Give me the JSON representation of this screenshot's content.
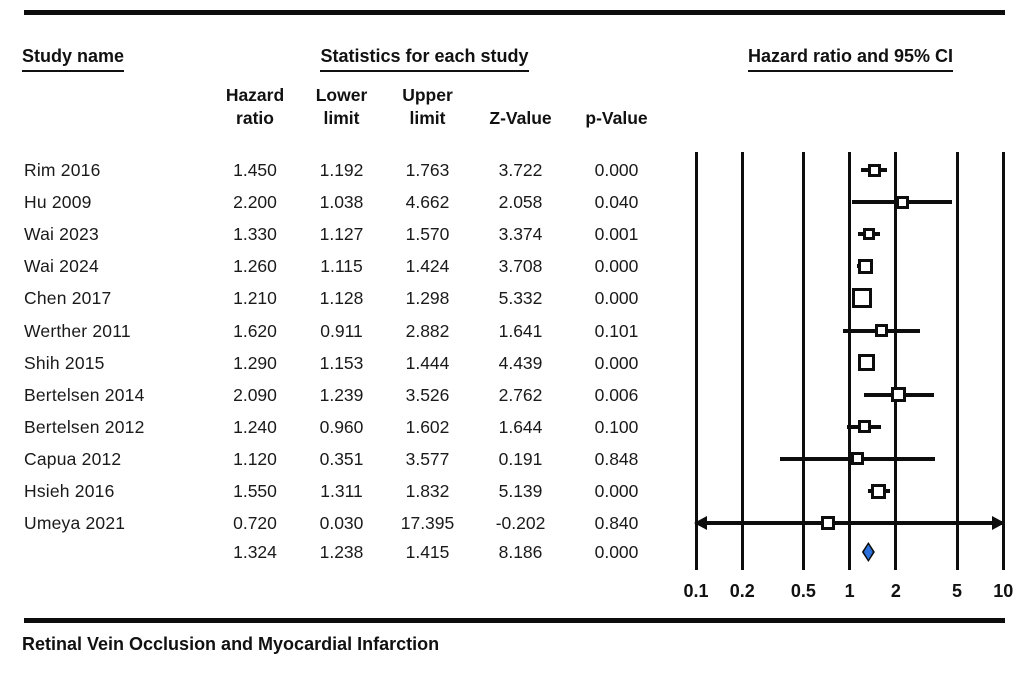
{
  "figure": {
    "headers": {
      "study": "Study name",
      "stats": "Statistics for each study",
      "plot": "Hazard ratio and 95% CI"
    },
    "stat_columns": [
      {
        "line1": "Hazard",
        "line2": "ratio"
      },
      {
        "line1": "Lower",
        "line2": "limit"
      },
      {
        "line1": "Upper",
        "line2": "limit"
      },
      {
        "line1": "Z-Value"
      },
      {
        "line1": "p-Value"
      }
    ],
    "caption": "Retinal Vein Occlusion and Myocardial Infarction"
  },
  "chart_data": {
    "type": "forest",
    "title": "Hazard ratio and 95% CI",
    "xscale": "log",
    "xlim": [
      0.1,
      10
    ],
    "xticks": [
      "0.1",
      "0.2",
      "0.5",
      "1",
      "2",
      "5",
      "10"
    ],
    "columns": [
      "Hazard ratio",
      "Lower limit",
      "Upper limit",
      "Z-Value",
      "p-Value"
    ],
    "studies": [
      {
        "name": "Rim 2016",
        "hazard_ratio": 1.45,
        "lower_limit": 1.192,
        "upper_limit": 1.763,
        "z_value": 3.722,
        "p_value": 0.0,
        "marker_size": 13
      },
      {
        "name": "Hu 2009",
        "hazard_ratio": 2.2,
        "lower_limit": 1.038,
        "upper_limit": 4.662,
        "z_value": 2.058,
        "p_value": 0.04,
        "marker_size": 13
      },
      {
        "name": "Wai 2023",
        "hazard_ratio": 1.33,
        "lower_limit": 1.127,
        "upper_limit": 1.57,
        "z_value": 3.374,
        "p_value": 0.001,
        "marker_size": 12
      },
      {
        "name": "Wai 2024",
        "hazard_ratio": 1.26,
        "lower_limit": 1.115,
        "upper_limit": 1.424,
        "z_value": 3.708,
        "p_value": 0.0,
        "marker_size": 15
      },
      {
        "name": "Chen 2017",
        "hazard_ratio": 1.21,
        "lower_limit": 1.128,
        "upper_limit": 1.298,
        "z_value": 5.332,
        "p_value": 0.0,
        "marker_size": 20
      },
      {
        "name": "Werther 2011",
        "hazard_ratio": 1.62,
        "lower_limit": 0.911,
        "upper_limit": 2.882,
        "z_value": 1.641,
        "p_value": 0.101,
        "marker_size": 13
      },
      {
        "name": "Shih 2015",
        "hazard_ratio": 1.29,
        "lower_limit": 1.153,
        "upper_limit": 1.444,
        "z_value": 4.439,
        "p_value": 0.0,
        "marker_size": 17
      },
      {
        "name": "Bertelsen 2014",
        "hazard_ratio": 2.09,
        "lower_limit": 1.239,
        "upper_limit": 3.526,
        "z_value": 2.762,
        "p_value": 0.006,
        "marker_size": 15
      },
      {
        "name": "Bertelsen 2012",
        "hazard_ratio": 1.24,
        "lower_limit": 0.96,
        "upper_limit": 1.602,
        "z_value": 1.644,
        "p_value": 0.1,
        "marker_size": 13
      },
      {
        "name": "Capua 2012",
        "hazard_ratio": 1.12,
        "lower_limit": 0.351,
        "upper_limit": 3.577,
        "z_value": 0.191,
        "p_value": 0.848,
        "marker_size": 13
      },
      {
        "name": "Hsieh 2016",
        "hazard_ratio": 1.55,
        "lower_limit": 1.311,
        "upper_limit": 1.832,
        "z_value": 5.139,
        "p_value": 0.0,
        "marker_size": 15
      },
      {
        "name": "Umeya 2021",
        "hazard_ratio": 0.72,
        "lower_limit": 0.03,
        "upper_limit": 17.395,
        "z_value": -0.202,
        "p_value": 0.84,
        "marker_size": 14
      }
    ],
    "summary": {
      "name": "",
      "hazard_ratio": 1.324,
      "lower_limit": 1.238,
      "upper_limit": 1.415,
      "z_value": 8.186,
      "p_value": 0.0,
      "marker": "diamond"
    },
    "colors": {
      "line": "#0d0d0d",
      "marker_fill": "#ffffff",
      "summary_diamond": "#2a6fdb"
    }
  }
}
